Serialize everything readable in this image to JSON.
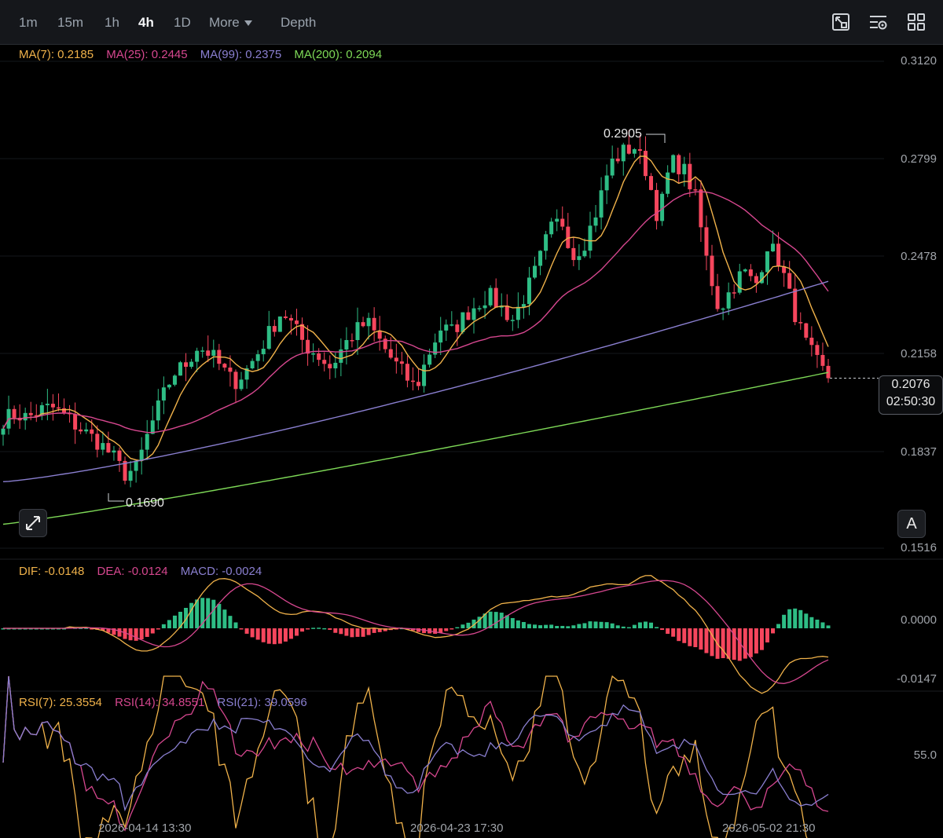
{
  "toolbar": {
    "timeframes": [
      "1m",
      "15m",
      "1h",
      "4h",
      "1D"
    ],
    "active": "4h",
    "more_label": "More",
    "depth_label": "Depth",
    "tools": [
      "fullscreen-chart-icon",
      "indicator-settings-icon",
      "layout-grid-icon"
    ]
  },
  "legends": {
    "ma": [
      {
        "label": "MA(7): 0.2185",
        "color": "#f0b24a"
      },
      {
        "label": "MA(25): 0.2445",
        "color": "#d6478f"
      },
      {
        "label": "MA(99): 0.2375",
        "color": "#8a7fd0"
      },
      {
        "label": "MA(200): 0.2094",
        "color": "#7ed957"
      }
    ],
    "macd": [
      {
        "label": "DIF: -0.0148",
        "color": "#f0b24a"
      },
      {
        "label": "DEA: -0.0124",
        "color": "#d6478f"
      },
      {
        "label": "MACD: -0.0024",
        "color": "#8a7fd0"
      }
    ],
    "rsi": [
      {
        "label": "RSI(7): 25.3554",
        "color": "#f0b24a"
      },
      {
        "label": "RSI(14): 34.8551",
        "color": "#d6478f"
      },
      {
        "label": "RSI(21): 39.0596",
        "color": "#8a7fd0"
      }
    ]
  },
  "price_axis": [
    "0.3120",
    "0.2799",
    "0.2478",
    "0.2158",
    "0.1837",
    "0.1516"
  ],
  "macd_axis": [
    "0.0000",
    "-0.0147"
  ],
  "rsi_axis": [
    "55.0"
  ],
  "x_axis": [
    "2026-04-14 13:30",
    "2026-04-23 17:30",
    "2026-05-02 21:30"
  ],
  "current_price": "0.2076",
  "countdown": "02:50:30",
  "high_annotation": "0.2905",
  "low_annotation": "0.1690",
  "auto_button": "A",
  "colors": {
    "up": "#2ebd85",
    "down": "#f6465d"
  },
  "chart_data": {
    "type": "candlestick",
    "price_range": [
      0.1516,
      0.312
    ],
    "close_trace": [
      0.194,
      0.196,
      0.1945,
      0.197,
      0.198,
      0.1955,
      0.192,
      0.189,
      0.186,
      0.182,
      0.176,
      0.178,
      0.19,
      0.2,
      0.209,
      0.212,
      0.218,
      0.216,
      0.211,
      0.206,
      0.21,
      0.216,
      0.223,
      0.23,
      0.224,
      0.218,
      0.215,
      0.211,
      0.218,
      0.223,
      0.226,
      0.22,
      0.214,
      0.209,
      0.204,
      0.215,
      0.224,
      0.223,
      0.228,
      0.232,
      0.235,
      0.231,
      0.227,
      0.235,
      0.244,
      0.256,
      0.26,
      0.248,
      0.253,
      0.264,
      0.278,
      0.282,
      0.284,
      0.276,
      0.26,
      0.279,
      0.277,
      0.268,
      0.246,
      0.23,
      0.237,
      0.243,
      0.238,
      0.252,
      0.246,
      0.232,
      0.22,
      0.213,
      0.2076
    ],
    "ma": {
      "ma7": 0.2185,
      "ma25": 0.2445,
      "ma99": 0.2375,
      "ma200": 0.2094
    },
    "macd": {
      "dif": -0.0148,
      "dea": -0.0124,
      "macd": -0.0024,
      "range": [
        -0.0147,
        0.0
      ]
    },
    "rsi": {
      "rsi7": 25.3554,
      "rsi14": 34.8551,
      "rsi21": 39.0596
    }
  }
}
